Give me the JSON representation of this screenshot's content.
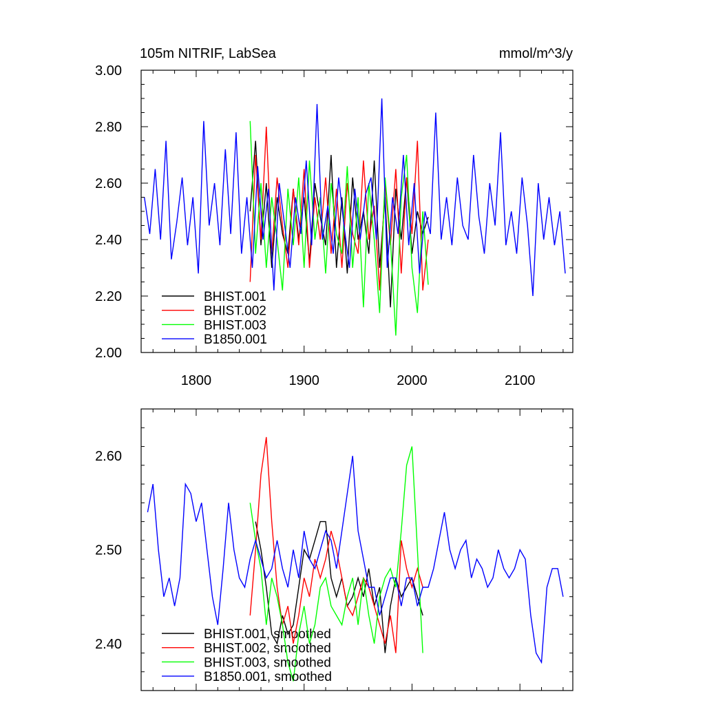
{
  "chart_data": [
    {
      "type": "line",
      "title_left": "105m NITRIF, LabSea",
      "title_right": "mmol/m^3/y",
      "xlim": [
        1749,
        2149
      ],
      "ylim": [
        2.0,
        3.0
      ],
      "xticks": [
        1800,
        1900,
        2000,
        2100
      ],
      "xtick_labels": [
        "1800",
        "1900",
        "2000",
        "2100"
      ],
      "yticks": [
        2.0,
        2.2,
        2.4,
        2.6,
        2.8,
        3.0
      ],
      "ytick_labels": [
        "2.00",
        "2.20",
        "2.40",
        "2.60",
        "2.80",
        "3.00"
      ],
      "legend_position": "bottom-left",
      "series": [
        {
          "name": "BHIST.001",
          "color": "#000000",
          "x_start": 1850,
          "x_step": 5,
          "values": [
            2.5,
            2.75,
            2.38,
            2.6,
            2.3,
            2.55,
            2.42,
            2.35,
            2.58,
            2.4,
            2.55,
            2.32,
            2.6,
            2.48,
            2.38,
            2.7,
            2.3,
            2.55,
            2.28,
            2.62,
            2.4,
            2.5,
            2.35,
            2.68,
            2.3,
            2.55,
            2.16,
            2.58,
            2.4,
            2.62,
            2.35,
            2.5,
            2.42,
            2.48
          ]
        },
        {
          "name": "BHIST.002",
          "color": "#ff0000",
          "x_start": 1850,
          "x_step": 5,
          "values": [
            2.25,
            2.7,
            2.4,
            2.8,
            2.35,
            2.62,
            2.45,
            2.3,
            2.58,
            2.38,
            2.65,
            2.3,
            2.55,
            2.4,
            2.62,
            2.35,
            2.58,
            2.3,
            2.6,
            2.42,
            2.35,
            2.68,
            2.4,
            2.52,
            2.22,
            2.6,
            2.38,
            2.65,
            2.28,
            2.62,
            2.42,
            2.75,
            2.22,
            2.4
          ]
        },
        {
          "name": "BHIST.003",
          "color": "#00ff00",
          "x_start": 1850,
          "x_step": 5,
          "values": [
            2.82,
            2.35,
            2.6,
            2.3,
            2.55,
            2.4,
            2.22,
            2.58,
            2.38,
            2.62,
            2.3,
            2.68,
            2.4,
            2.55,
            2.28,
            2.6,
            2.42,
            2.35,
            2.66,
            2.3,
            2.55,
            2.16,
            2.6,
            2.4,
            2.14,
            2.62,
            2.4,
            2.06,
            2.55,
            2.7,
            2.3,
            2.14,
            2.5,
            2.24
          ]
        },
        {
          "name": "B1850.001",
          "color": "#0000ff",
          "x_start": 1752,
          "x_step": 5,
          "values": [
            2.55,
            2.42,
            2.65,
            2.4,
            2.75,
            2.33,
            2.46,
            2.62,
            2.38,
            2.55,
            2.28,
            2.82,
            2.45,
            2.6,
            2.38,
            2.72,
            2.42,
            2.78,
            2.35,
            2.55,
            2.3,
            2.66,
            2.4,
            2.58,
            2.22,
            2.6,
            2.45,
            2.3,
            2.55,
            2.42,
            2.68,
            2.38,
            2.88,
            2.4,
            2.52,
            2.35,
            2.62,
            2.45,
            2.3,
            2.58,
            2.4,
            2.56,
            2.62,
            2.4,
            2.9,
            2.3,
            2.55,
            2.42,
            2.7,
            2.38,
            2.6,
            2.28,
            2.5,
            2.42,
            2.85,
            2.4,
            2.55,
            2.38,
            2.62,
            2.45,
            2.4,
            2.7,
            2.48,
            2.35,
            2.6,
            2.45,
            2.78,
            2.38,
            2.5,
            2.35,
            2.62,
            2.45,
            2.2,
            2.6,
            2.4,
            2.55,
            2.38,
            2.5,
            2.28
          ]
        }
      ]
    },
    {
      "type": "line",
      "xlim": [
        1749,
        2149
      ],
      "ylim": [
        2.35,
        2.65
      ],
      "xticks": [
        1800,
        1900,
        2000,
        2100
      ],
      "yticks": [
        2.4,
        2.5,
        2.6
      ],
      "ytick_labels": [
        "2.40",
        "2.50",
        "2.60"
      ],
      "legend_position": "bottom-left",
      "series": [
        {
          "name": "BHIST.001, smoothed",
          "color": "#000000",
          "x_start": 1855,
          "x_step": 5,
          "values": [
            2.53,
            2.5,
            2.46,
            2.41,
            2.4,
            2.43,
            2.41,
            2.42,
            2.46,
            2.5,
            2.49,
            2.51,
            2.53,
            2.53,
            2.47,
            2.45,
            2.47,
            2.44,
            2.45,
            2.47,
            2.45,
            2.48,
            2.44,
            2.46,
            2.39,
            2.44,
            2.47,
            2.45,
            2.46,
            2.47,
            2.45,
            2.43
          ]
        },
        {
          "name": "BHIST.002, smoothed",
          "color": "#ff0000",
          "x_start": 1850,
          "x_step": 5,
          "values": [
            2.43,
            2.5,
            2.58,
            2.62,
            2.53,
            2.46,
            2.42,
            2.44,
            2.4,
            2.43,
            2.47,
            2.45,
            2.49,
            2.47,
            2.49,
            2.52,
            2.5,
            2.47,
            2.44,
            2.43,
            2.45,
            2.47,
            2.46,
            2.44,
            2.42,
            2.4,
            2.43,
            2.39,
            2.51,
            2.48,
            2.46,
            2.48,
            2.46
          ]
        },
        {
          "name": "BHIST.003, smoothed",
          "color": "#00ff00",
          "x_start": 1850,
          "x_step": 5,
          "values": [
            2.55,
            2.51,
            2.48,
            2.42,
            2.47,
            2.45,
            2.42,
            2.38,
            2.36,
            2.41,
            2.44,
            2.4,
            2.42,
            2.46,
            2.47,
            2.44,
            2.43,
            2.42,
            2.45,
            2.47,
            2.42,
            2.47,
            2.43,
            2.4,
            2.45,
            2.47,
            2.48,
            2.46,
            2.52,
            2.59,
            2.61,
            2.5,
            2.39
          ]
        },
        {
          "name": "B1850.001, smoothed",
          "color": "#0000ff",
          "x_start": 1755,
          "x_step": 5,
          "values": [
            2.54,
            2.57,
            2.5,
            2.45,
            2.47,
            2.44,
            2.47,
            2.57,
            2.56,
            2.53,
            2.55,
            2.5,
            2.45,
            2.42,
            2.48,
            2.55,
            2.5,
            2.47,
            2.46,
            2.49,
            2.51,
            2.49,
            2.47,
            2.48,
            2.51,
            2.48,
            2.46,
            2.5,
            2.47,
            2.52,
            2.49,
            2.48,
            2.5,
            2.52,
            2.51,
            2.48,
            2.52,
            2.56,
            2.6,
            2.52,
            2.49,
            2.46,
            2.46,
            2.43,
            2.45,
            2.47,
            2.47,
            2.44,
            2.47,
            2.47,
            2.44,
            2.46,
            2.46,
            2.48,
            2.51,
            2.54,
            2.5,
            2.48,
            2.5,
            2.51,
            2.47,
            2.49,
            2.48,
            2.46,
            2.47,
            2.5,
            2.48,
            2.47,
            2.48,
            2.5,
            2.49,
            2.43,
            2.39,
            2.38,
            2.46,
            2.48,
            2.48,
            2.45
          ]
        }
      ]
    }
  ]
}
